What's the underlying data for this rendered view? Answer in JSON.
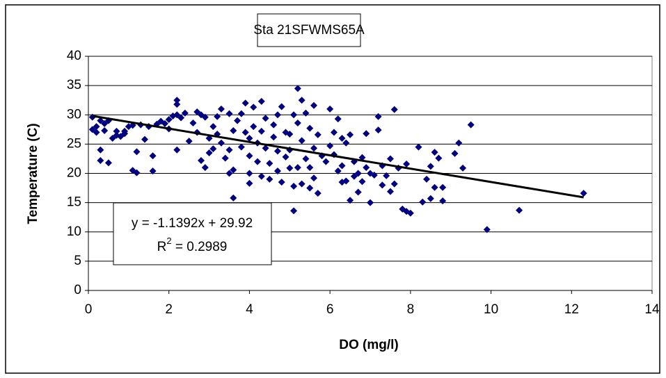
{
  "chart_data": {
    "type": "scatter",
    "title": "Sta 21SFWMS65A",
    "x_label": "DO (mg/l)",
    "y_label": "Temperature (C)",
    "xlim": [
      0,
      14
    ],
    "xticks": [
      0,
      2,
      4,
      6,
      8,
      10,
      12,
      14
    ],
    "ylim": [
      0,
      40
    ],
    "yticks": [
      0,
      5,
      10,
      15,
      20,
      25,
      30,
      35,
      40
    ],
    "grid": true,
    "series": [
      {
        "color": "#000080",
        "x": [
          0.1,
          0.1,
          0.2,
          0.2,
          0.3,
          0.3,
          0.3,
          0.4,
          0.4,
          0.5,
          0.5,
          0.6,
          0.7,
          0.7,
          0.8,
          0.9,
          0.9,
          1.0,
          1.1,
          1.2,
          1.2,
          1.1,
          1.3,
          1.4,
          1.6,
          1.6,
          1.5,
          1.7,
          1.8,
          1.9,
          2.0,
          2.0,
          2.1,
          2.2,
          2.2,
          2.2,
          2.3,
          2.2,
          2.4,
          2.5,
          2.6,
          2.7,
          2.7,
          2.8,
          2.8,
          2.9,
          2.9,
          3.0,
          3.0,
          3.1,
          3.1,
          3.2,
          3.2,
          3.3,
          3.3,
          3.4,
          3.5,
          3.5,
          3.5,
          3.6,
          3.6,
          3.6,
          3.7,
          3.8,
          3.8,
          3.9,
          3.9,
          4.0,
          4.0,
          4.0,
          4.0,
          4.1,
          4.1,
          4.2,
          4.2,
          4.3,
          4.3,
          4.3,
          4.4,
          4.4,
          4.5,
          4.5,
          4.6,
          4.6,
          4.7,
          4.7,
          4.7,
          4.8,
          4.8,
          4.9,
          4.9,
          5.0,
          5.0,
          5.0,
          5.1,
          5.1,
          5.1,
          5.2,
          5.2,
          5.2,
          5.3,
          5.3,
          5.3,
          5.4,
          5.4,
          5.5,
          5.5,
          5.5,
          5.6,
          5.6,
          5.6,
          5.7,
          5.7,
          5.8,
          5.9,
          6.0,
          6.0,
          6.1,
          6.1,
          6.2,
          6.2,
          6.3,
          6.3,
          6.3,
          6.4,
          6.4,
          6.5,
          6.5,
          6.6,
          6.6,
          6.7,
          6.7,
          6.8,
          6.8,
          6.9,
          6.9,
          7.0,
          7.0,
          7.1,
          7.2,
          7.2,
          7.3,
          7.3,
          7.4,
          7.5,
          7.5,
          7.6,
          7.6,
          7.7,
          7.8,
          7.9,
          7.9,
          8.0,
          8.2,
          8.3,
          8.4,
          8.5,
          8.5,
          8.6,
          8.6,
          8.7,
          8.8,
          8.8,
          9.1,
          9.2,
          9.3,
          9.5,
          9.9,
          10.7,
          12.3
        ],
        "values": [
          29.6,
          27.5,
          28,
          27,
          22.2,
          24,
          29,
          28.5,
          27.3,
          21.8,
          29,
          26,
          26.5,
          27.2,
          26.3,
          27.2,
          26.8,
          28,
          20.5,
          20.1,
          23.7,
          28.2,
          28.3,
          25.8,
          20.4,
          23,
          28,
          28.4,
          28.9,
          28.5,
          27.6,
          29.2,
          29.8,
          32.5,
          31.8,
          30,
          29.5,
          24,
          30.3,
          25.5,
          28.6,
          30.5,
          27,
          30,
          22.2,
          21,
          29.6,
          26,
          23.5,
          28,
          24.2,
          29.7,
          26.7,
          25.2,
          31,
          22.6,
          20,
          24,
          30.2,
          15.8,
          20.6,
          27.3,
          29,
          30.2,
          24.5,
          32,
          27,
          26,
          23,
          20,
          18.3,
          31.3,
          28,
          25.2,
          22,
          32.3,
          27.2,
          19.5,
          29.4,
          24.3,
          21.7,
          19,
          28.3,
          26.2,
          30,
          23.8,
          20.4,
          31.4,
          18.5,
          27,
          22.8,
          26.7,
          24,
          20.9,
          30,
          13.6,
          17.8,
          34.5,
          28.6,
          21,
          32.5,
          25.6,
          18.2,
          30.3,
          22.5,
          27.7,
          21,
          17.5,
          31.6,
          24.3,
          19.2,
          16.6,
          26.6,
          23,
          22,
          31,
          24.7,
          27,
          23.2,
          29.3,
          20.4,
          26,
          21.3,
          18.5,
          25.2,
          18.7,
          26.6,
          15.4,
          22,
          19.5,
          20,
          16.8,
          22.7,
          18.6,
          26.8,
          21,
          20,
          15,
          19.7,
          29.7,
          27.4,
          21.3,
          18,
          19.6,
          22.5,
          16.9,
          30.9,
          18.2,
          20.9,
          13.9,
          21.6,
          13.5,
          13.2,
          24.5,
          15.1,
          19,
          21.2,
          15.7,
          23.6,
          17.6,
          22.6,
          17.6,
          15.3,
          23.4,
          25.2,
          20.9,
          28.3,
          10.4,
          13.7,
          16.6
        ]
      }
    ],
    "trendline": {
      "slope": -1.1392,
      "intercept": 29.92,
      "xlim": [
        0.1,
        12.3
      ],
      "color": "#000000",
      "equation": "y = -1.1392x + 29.92",
      "r2_symbol": "R",
      "r2_exponent": "2",
      "r2_text": " = 0.2989"
    }
  }
}
